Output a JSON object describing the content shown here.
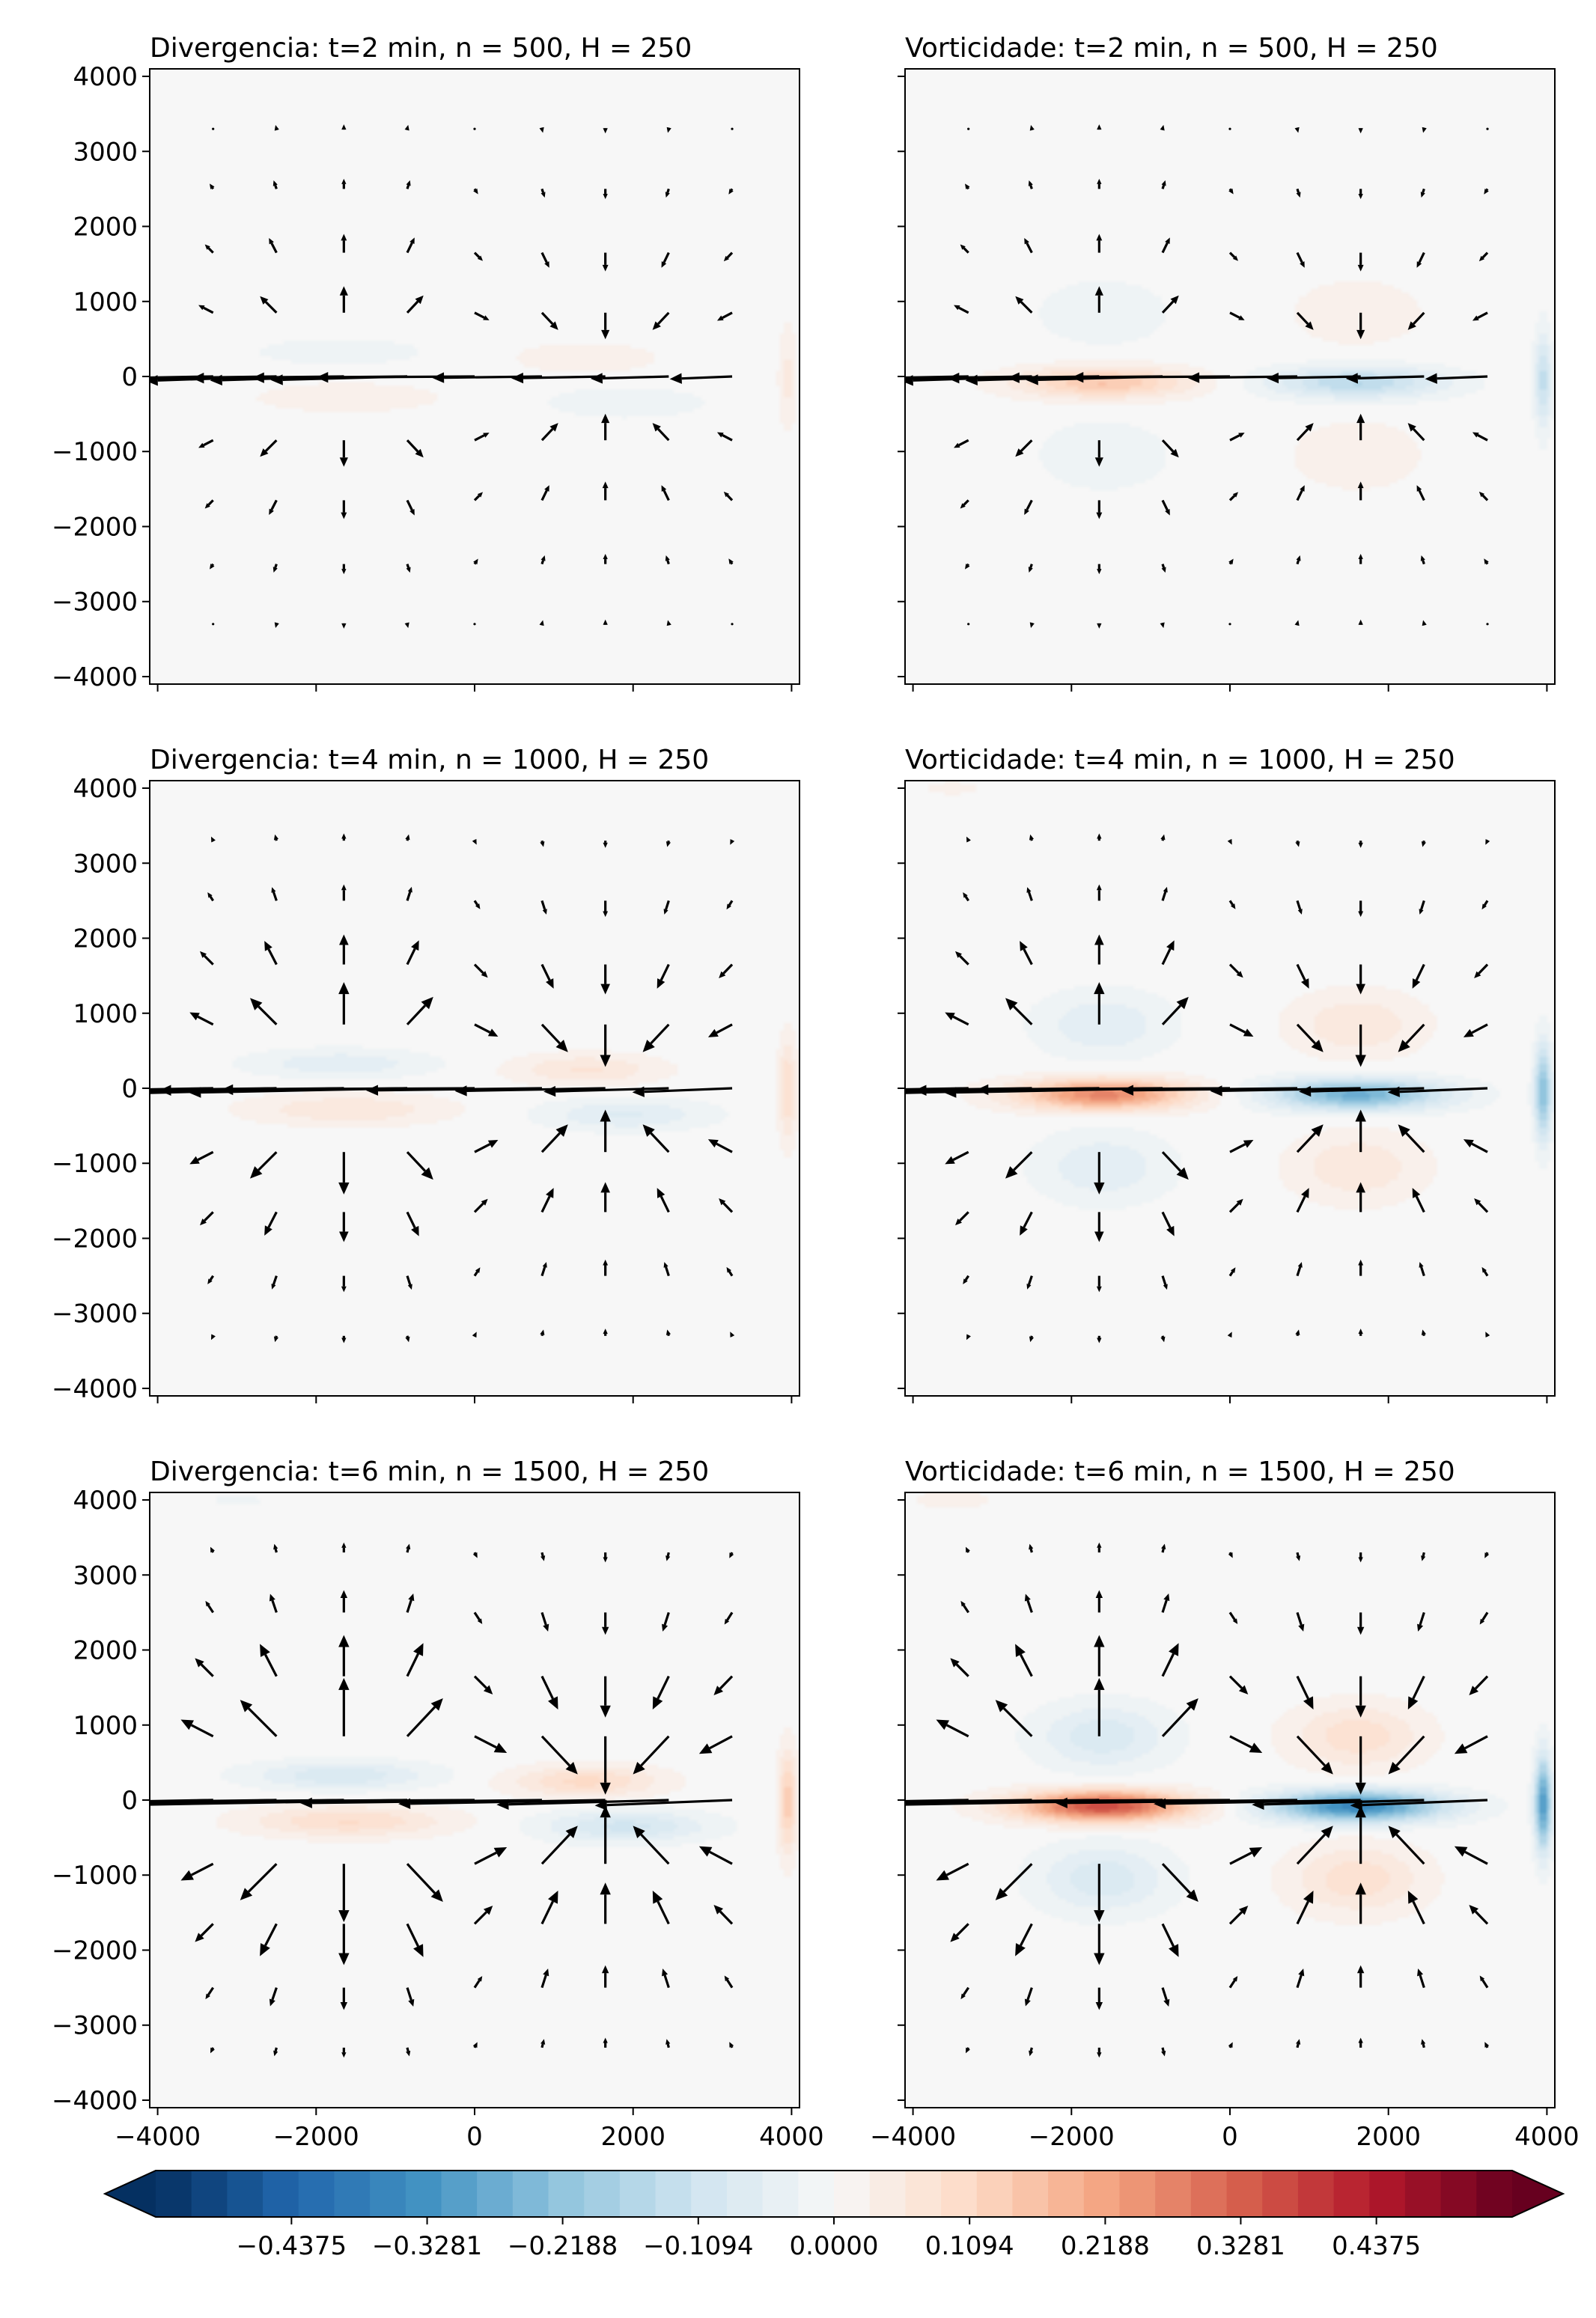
{
  "figure": {
    "colorbar": {
      "ticks": [
        "−0.4375",
        "−0.3281",
        "−0.2188",
        "−0.1094",
        "0.0000",
        "0.1094",
        "0.2188",
        "0.3281",
        "0.4375"
      ],
      "tick_values": [
        -0.4375,
        -0.3281,
        -0.2188,
        -0.1094,
        0.0,
        0.1094,
        0.2188,
        0.3281,
        0.4375
      ],
      "vmin": -0.547,
      "vmax": 0.547,
      "extend": "both",
      "colormap": "RdBu_r",
      "cmap_stops": [
        "#053061",
        "#2166ac",
        "#4393c3",
        "#92c5de",
        "#d1e5f0",
        "#f7f7f7",
        "#fddbc7",
        "#f4a582",
        "#d6604d",
        "#b2182b",
        "#67001f"
      ]
    }
  },
  "chart_data": [
    {
      "type": "heatmap",
      "field": "divergence",
      "title": "Divergencia: t=2 min, n = 500, H = 250",
      "amp": 0.045,
      "quiver_scale": 1.0,
      "xlim": [
        -4100,
        4100
      ],
      "ylim": [
        -4100,
        4100
      ],
      "xticks": [
        "−4000",
        "−2000",
        "0",
        "2000",
        "4000"
      ],
      "yticks": [
        "4000",
        "3000",
        "2000",
        "1000",
        "0",
        "−1000",
        "−2000",
        "−3000",
        "−4000"
      ]
    },
    {
      "type": "heatmap",
      "field": "vorticity",
      "title": "Vorticidade: t=2 min, n = 500, H = 250",
      "amp": 0.17,
      "quiver_scale": 1.0,
      "xlim": [
        -4100,
        4100
      ],
      "ylim": [
        -4100,
        4100
      ],
      "xticks": [
        "−4000",
        "−2000",
        "0",
        "2000",
        "4000"
      ],
      "yticks": [
        "4000",
        "3000",
        "2000",
        "1000",
        "0",
        "−1000",
        "−2000",
        "−3000",
        "−4000"
      ]
    },
    {
      "type": "heatmap",
      "field": "divergence",
      "title": "Divergencia: t=4 min, n = 1000, H = 250",
      "amp": 0.09,
      "quiver_scale": 1.6,
      "xlim": [
        -4100,
        4100
      ],
      "ylim": [
        -4100,
        4100
      ],
      "xticks": [
        "−4000",
        "−2000",
        "0",
        "2000",
        "4000"
      ],
      "yticks": [
        "4000",
        "3000",
        "2000",
        "1000",
        "0",
        "−1000",
        "−2000",
        "−3000",
        "−4000"
      ]
    },
    {
      "type": "heatmap",
      "field": "vorticity",
      "title": "Vorticidade: t=4 min, n = 1000, H = 250",
      "amp": 0.3,
      "quiver_scale": 1.6,
      "xlim": [
        -4100,
        4100
      ],
      "ylim": [
        -4100,
        4100
      ],
      "xticks": [
        "−4000",
        "−2000",
        "0",
        "2000",
        "4000"
      ],
      "yticks": [
        "4000",
        "3000",
        "2000",
        "1000",
        "0",
        "−1000",
        "−2000",
        "−3000",
        "−4000"
      ]
    },
    {
      "type": "heatmap",
      "field": "divergence",
      "title": "Divergencia: t=6 min, n = 1500, H = 250",
      "amp": 0.13,
      "quiver_scale": 2.2,
      "xlim": [
        -4100,
        4100
      ],
      "ylim": [
        -4100,
        4100
      ],
      "xticks": [
        "−4000",
        "−2000",
        "0",
        "2000",
        "4000"
      ],
      "yticks": [
        "4000",
        "3000",
        "2000",
        "1000",
        "0",
        "−1000",
        "−2000",
        "−3000",
        "−4000"
      ]
    },
    {
      "type": "heatmap",
      "field": "vorticity",
      "title": "Vorticidade: t=6 min, n = 1500, H = 250",
      "amp": 0.4,
      "quiver_scale": 2.2,
      "xlim": [
        -4100,
        4100
      ],
      "ylim": [
        -4100,
        4100
      ],
      "xticks": [
        "−4000",
        "−2000",
        "0",
        "2000",
        "4000"
      ],
      "yticks": [
        "4000",
        "3000",
        "2000",
        "1000",
        "0",
        "−1000",
        "−2000",
        "−3000",
        "−4000"
      ]
    }
  ]
}
